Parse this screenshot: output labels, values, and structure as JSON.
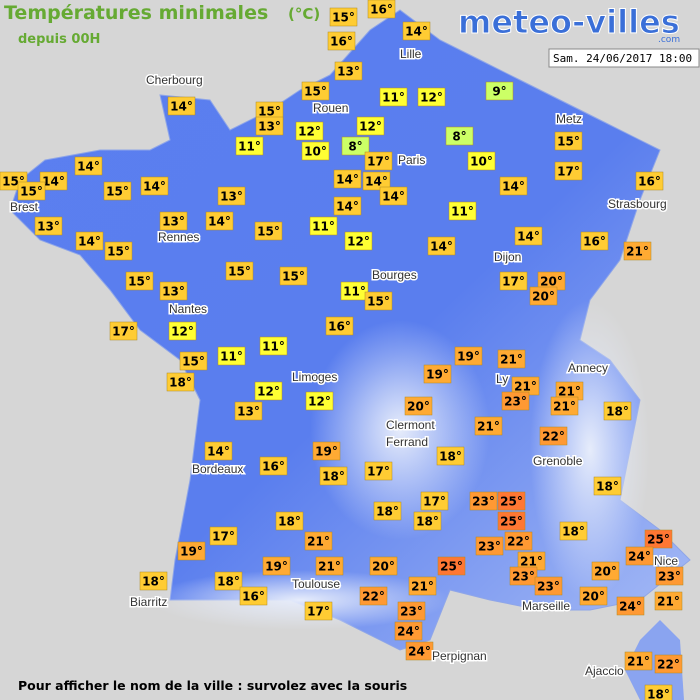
{
  "header": {
    "title": "Températures minimales",
    "unit": "(°C)",
    "subtitle": "depuis 00H",
    "logo": "meteo-villes",
    "logo_suffix": ".com",
    "date": "Sam. 24/06/2017 18:00"
  },
  "cities": [
    "Cherbourg",
    "Lille",
    "Rouen",
    "Metz",
    "Paris",
    "Brest",
    "Strasbourg",
    "Rennes",
    "Dijon",
    "Bourges",
    "Nantes",
    "Annecy",
    "Limoges",
    "Ly",
    "Clermont",
    "Ferrand",
    "Grenoble",
    "Bordeaux",
    "Toulouse",
    "Marseille",
    "Nice",
    "Biarritz",
    "Perpignan",
    "Ajaccio"
  ],
  "temperatures": {
    "labels": [
      "15°",
      "16°",
      "16°",
      "14°",
      "13°",
      "14°",
      "15°",
      "15°",
      "13°",
      "11°",
      "12°",
      "9°",
      "12°",
      "12°",
      "11°",
      "10°",
      "8°",
      "8°",
      "15°",
      "17°",
      "10°",
      "14°",
      "15°",
      "14°",
      "15°",
      "15°",
      "14°",
      "14°",
      "14°",
      "14°",
      "17°",
      "16°",
      "14°",
      "13°",
      "14°",
      "14°",
      "13°",
      "13°",
      "11°",
      "11°",
      "15°",
      "14°",
      "15°",
      "14°",
      "12°",
      "16°",
      "14°",
      "21°",
      "15°",
      "15°",
      "15°",
      "13°",
      "17°",
      "20°",
      "20°",
      "11°",
      "15°",
      "17°",
      "16°",
      "12°",
      "11°",
      "11°",
      "15°",
      "19°",
      "21°",
      "18°",
      "19°",
      "21°",
      "21°",
      "12°",
      "23°",
      "21°",
      "18°",
      "12°",
      "13°",
      "20°",
      "21°",
      "22°",
      "14°",
      "19°",
      "18°",
      "16°",
      "18°",
      "17°",
      "18°",
      "17°",
      "23°",
      "25°",
      "18°",
      "18°",
      "18°",
      "25°",
      "18°",
      "17°",
      "25°",
      "21°",
      "22°",
      "23°",
      "19°",
      "24°",
      "21°",
      "20°",
      "25°",
      "19°",
      "21°",
      "20°",
      "23°",
      "23°",
      "23°",
      "18°",
      "18°",
      "21°",
      "16°",
      "22°",
      "20°",
      "21°",
      "24°",
      "23°",
      "17°",
      "24°",
      "24°",
      "21°",
      "22°",
      "18°"
    ],
    "colors": [
      "#ffcc33",
      "#ffcc33",
      "#ffcc33",
      "#ffcc33",
      "#ffcc33",
      "#ffcc33",
      "#ffcc33",
      "#ffcc33",
      "#ffcc33",
      "#ffff33",
      "#ffff33",
      "#ccff66",
      "#ffff33",
      "#ffff33",
      "#ffff33",
      "#ffff33",
      "#ccff66",
      "#ccff66",
      "#ffcc33",
      "#ffcc33",
      "#ffff33",
      "#ffcc33",
      "#ffcc33",
      "#ffcc33",
      "#ffcc33",
      "#ffcc33",
      "#ffcc33",
      "#ffcc33",
      "#ffcc33",
      "#ffcc33",
      "#ffcc33",
      "#ffcc33",
      "#ffcc33",
      "#ffcc33",
      "#ffcc33",
      "#ffcc33",
      "#ffcc33",
      "#ffcc33",
      "#ffff33",
      "#ffff33",
      "#ffcc33",
      "#ffcc33",
      "#ffcc33",
      "#ffcc33",
      "#ffff33",
      "#ffcc33",
      "#ffcc33",
      "#ffaa33",
      "#ffcc33",
      "#ffcc33",
      "#ffcc33",
      "#ffcc33",
      "#ffcc33",
      "#ffaa33",
      "#ffaa33",
      "#ffff33",
      "#ffcc33",
      "#ffcc33",
      "#ffcc33",
      "#ffff33",
      "#ffff33",
      "#ffff33",
      "#ffcc33",
      "#ffaa33",
      "#ffaa33",
      "#ffcc33",
      "#ffaa33",
      "#ffaa33",
      "#ffaa33",
      "#ffff33",
      "#ff9933",
      "#ffaa33",
      "#ffcc33",
      "#ffff33",
      "#ffcc33",
      "#ffaa33",
      "#ffaa33",
      "#ff9933",
      "#ffcc33",
      "#ffaa33",
      "#ffcc33",
      "#ffcc33",
      "#ffcc33",
      "#ffcc33",
      "#ffcc33",
      "#ffcc33",
      "#ff9933",
      "#ff7733",
      "#ffcc33",
      "#ffcc33",
      "#ffcc33",
      "#ff7733",
      "#ffcc33",
      "#ffcc33",
      "#ff7733",
      "#ffaa33",
      "#ff9933",
      "#ff9933",
      "#ffaa33",
      "#ff9933",
      "#ffaa33",
      "#ffaa33",
      "#ff7733",
      "#ffaa33",
      "#ffaa33",
      "#ffaa33",
      "#ff9933",
      "#ff9933",
      "#ff9933",
      "#ffcc33",
      "#ffcc33",
      "#ffaa33",
      "#ffcc33",
      "#ff9933",
      "#ffaa33",
      "#ffaa33",
      "#ff9933",
      "#ff9933",
      "#ffcc33",
      "#ff9933",
      "#ff9933",
      "#ffaa33",
      "#ff9933",
      "#ffcc33"
    ]
  },
  "footer": "Pour afficher le nom de la ville : survolez avec la souris"
}
